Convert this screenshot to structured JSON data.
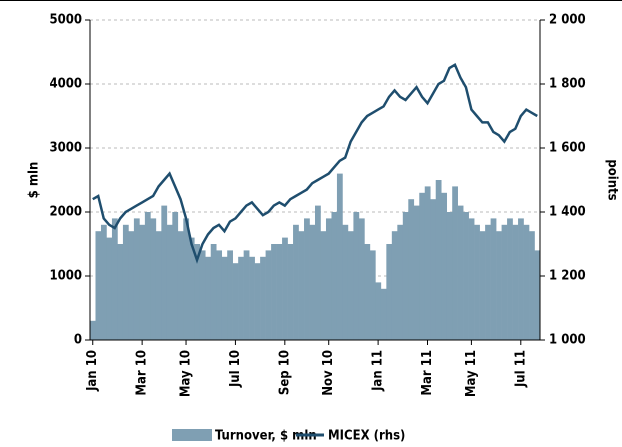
{
  "chart_data": {
    "type": "bar-line",
    "y_label": "$ mln",
    "y2_label": "points",
    "categories": [
      "Jan 10",
      null,
      null,
      null,
      null,
      null,
      null,
      null,
      null,
      "Mar 10",
      null,
      null,
      null,
      null,
      null,
      null,
      null,
      "May 10",
      null,
      null,
      null,
      null,
      null,
      null,
      null,
      null,
      "Jul 10",
      null,
      null,
      null,
      null,
      null,
      null,
      null,
      null,
      "Sep 10",
      null,
      null,
      null,
      null,
      null,
      null,
      null,
      "Nov 10",
      null,
      null,
      null,
      null,
      null,
      null,
      null,
      null,
      "Jan 11",
      null,
      null,
      null,
      null,
      null,
      null,
      null,
      null,
      "Mar 11",
      null,
      null,
      null,
      null,
      null,
      null,
      null,
      "May 11",
      null,
      null,
      null,
      null,
      null,
      null,
      null,
      null,
      "Jul 11",
      null,
      null,
      null
    ],
    "series": [
      {
        "name": "Turnover, $ mln",
        "color": "#7f9fb3",
        "values": [
          300,
          1700,
          1800,
          1600,
          1900,
          1500,
          1800,
          1700,
          1900,
          1800,
          2000,
          1900,
          1700,
          2100,
          1800,
          2000,
          1700,
          1900,
          1600,
          1500,
          1400,
          1300,
          1500,
          1400,
          1300,
          1400,
          1200,
          1300,
          1400,
          1300,
          1200,
          1300,
          1400,
          1500,
          1500,
          1600,
          1500,
          1800,
          1700,
          1900,
          1800,
          2100,
          1700,
          1900,
          2000,
          2600,
          1800,
          1700,
          2000,
          1900,
          1500,
          1400,
          900,
          800,
          1500,
          1700,
          1800,
          2000,
          2200,
          2100,
          2300,
          2400,
          2200,
          2500,
          2300,
          2000,
          2400,
          2100,
          2000,
          1900,
          1800,
          1700,
          1800,
          1900,
          1700,
          1800,
          1900,
          1800,
          1900,
          1800,
          1700,
          1400
        ]
      },
      {
        "name": "MICEX (rhs)",
        "color": "#1f4e6e",
        "axis": "y2",
        "values": [
          1440,
          1450,
          1380,
          1360,
          1350,
          1380,
          1400,
          1410,
          1420,
          1430,
          1440,
          1450,
          1480,
          1500,
          1520,
          1480,
          1440,
          1380,
          1300,
          1250,
          1300,
          1330,
          1350,
          1360,
          1340,
          1370,
          1380,
          1400,
          1420,
          1430,
          1410,
          1390,
          1400,
          1420,
          1430,
          1420,
          1440,
          1450,
          1460,
          1470,
          1490,
          1500,
          1510,
          1520,
          1540,
          1560,
          1570,
          1620,
          1650,
          1680,
          1700,
          1710,
          1720,
          1730,
          1760,
          1780,
          1760,
          1750,
          1770,
          1790,
          1760,
          1740,
          1770,
          1800,
          1810,
          1850,
          1860,
          1820,
          1790,
          1720,
          1700,
          1680,
          1680,
          1650,
          1640,
          1620,
          1650,
          1660,
          1700,
          1720,
          1710,
          1700
        ]
      }
    ],
    "ylim": [
      0,
      5000
    ],
    "yticks": [
      0,
      1000,
      2000,
      3000,
      4000,
      5000
    ],
    "y2lim": [
      1000,
      2000
    ],
    "y2ticks": [
      {
        "value": 1000,
        "label": "1 000"
      },
      {
        "value": 1200,
        "label": "1 200"
      },
      {
        "value": 1400,
        "label": "1 400"
      },
      {
        "value": 1600,
        "label": "1 600"
      },
      {
        "value": 1800,
        "label": "1 800"
      },
      {
        "value": 2000,
        "label": "2 000"
      }
    ],
    "grid": true,
    "legend": "bottom"
  }
}
